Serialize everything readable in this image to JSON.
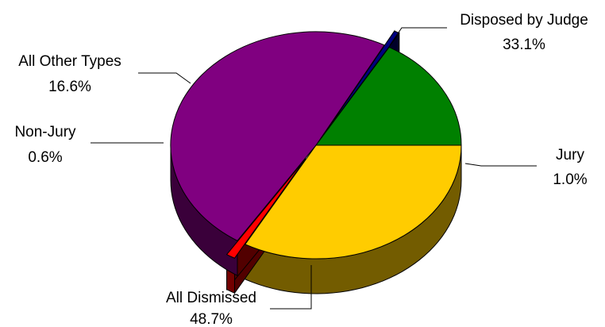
{
  "chart_data": {
    "type": "pie",
    "three_d": true,
    "slices": [
      {
        "name": "Disposed by Judge",
        "value": 33.1,
        "label": "33.1%",
        "color": "#ffcc00"
      },
      {
        "name": "Jury",
        "value": 1.0,
        "label": "1.0%",
        "color": "#ff0000",
        "exploded": true
      },
      {
        "name": "All Dismissed",
        "value": 48.7,
        "label": "48.7%",
        "color": "#800080"
      },
      {
        "name": "Non-Jury",
        "value": 0.6,
        "label": "0.6%",
        "color": "#000080",
        "exploded": true
      },
      {
        "name": "All Other Types",
        "value": 16.6,
        "label": "16.6%",
        "color": "#008000"
      }
    ],
    "legend": "none"
  }
}
